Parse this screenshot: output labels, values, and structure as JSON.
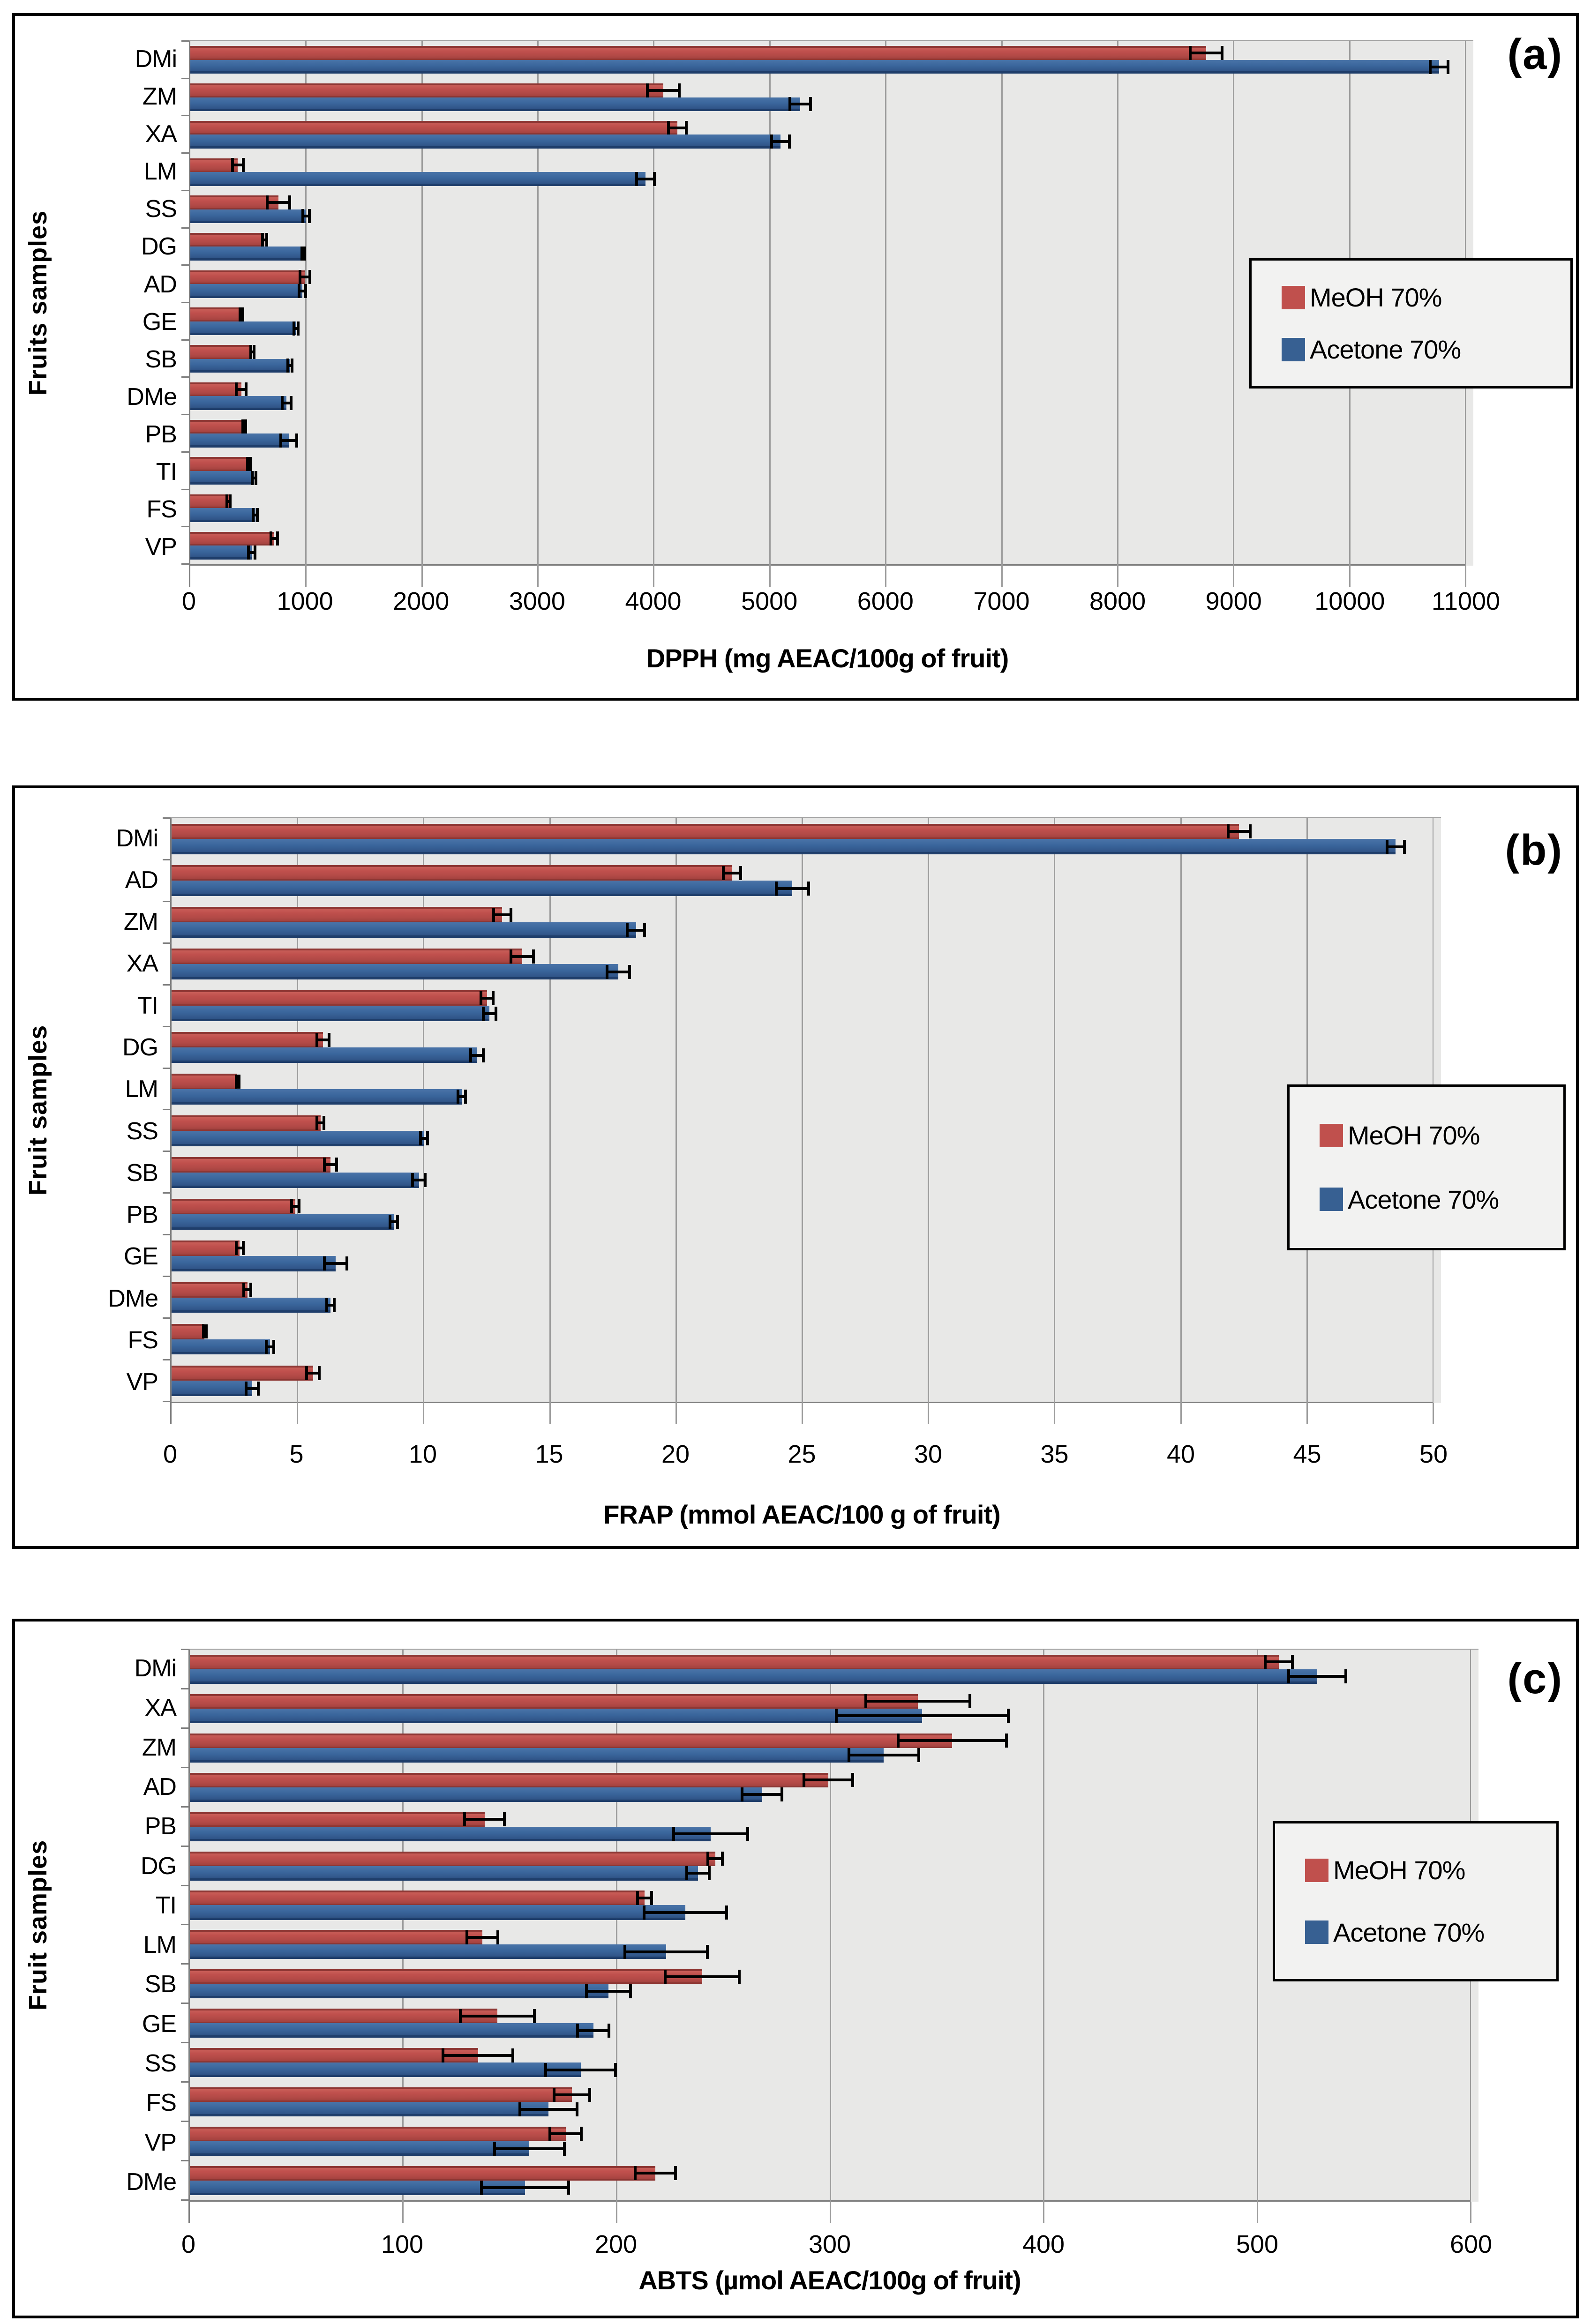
{
  "figure": {
    "panels": [
      "(a)",
      "(b)",
      "(c)"
    ]
  },
  "colors": {
    "meoh_red": "#C0504D",
    "acetone_blue": "#376092",
    "plot_background": "#E8E8E7",
    "gridline": "#9C9C9C",
    "axis": "#7F7F7F",
    "error_bar": "#000000",
    "panel_border": "#000000"
  },
  "chart_data": [
    {
      "type": "bar",
      "orientation": "horizontal",
      "panel_label": "(a)",
      "xlabel": "DPPH (mg AEAC/100g of fruit)",
      "ylabel": "Fruits samples",
      "xlim": [
        0,
        11000
      ],
      "xticks": [
        0,
        1000,
        2000,
        3000,
        4000,
        5000,
        6000,
        7000,
        8000,
        9000,
        10000,
        11000
      ],
      "grid": true,
      "legend_position": "right-middle",
      "categories": [
        "DMi",
        "ZM",
        "XA",
        "LM",
        "SS",
        "DG",
        "AD",
        "GE",
        "SB",
        "DMe",
        "PB",
        "TI",
        "FS",
        "VP"
      ],
      "series": [
        {
          "name": "MeOH 70%",
          "color": "#C0504D",
          "values": [
            8760,
            4080,
            4200,
            410,
            760,
            640,
            990,
            440,
            535,
            440,
            460,
            505,
            330,
            725
          ],
          "errors": [
            150,
            150,
            90,
            60,
            110,
            30,
            55,
            25,
            25,
            55,
            20,
            25,
            25,
            40
          ]
        },
        {
          "name": "Acetone 70%",
          "color": "#376092",
          "values": [
            10770,
            5260,
            5090,
            3925,
            1000,
            975,
            965,
            910,
            860,
            830,
            850,
            550,
            560,
            530
          ],
          "errors": [
            90,
            100,
            90,
            90,
            40,
            25,
            40,
            30,
            30,
            50,
            80,
            30,
            30,
            40
          ]
        }
      ]
    },
    {
      "type": "bar",
      "orientation": "horizontal",
      "panel_label": "(b)",
      "xlabel": "FRAP (mmol AEAC/100 g of fruit)",
      "ylabel": "Fruit samples",
      "xlim": [
        0,
        50
      ],
      "xticks": [
        0,
        5,
        10,
        15,
        20,
        25,
        30,
        35,
        40,
        45,
        50
      ],
      "grid": true,
      "legend_position": "right-middle",
      "categories": [
        "DMi",
        "AD",
        "ZM",
        "XA",
        "TI",
        "DG",
        "LM",
        "SS",
        "SB",
        "PB",
        "GE",
        "DMe",
        "FS",
        "VP"
      ],
      "series": [
        {
          "name": "MeOH 70%",
          "color": "#C0504D",
          "values": [
            42.3,
            22.2,
            13.1,
            13.9,
            12.5,
            6.0,
            2.6,
            5.9,
            6.3,
            4.9,
            2.7,
            3.0,
            1.3,
            5.6
          ],
          "errors": [
            0.5,
            0.4,
            0.4,
            0.5,
            0.3,
            0.3,
            0.1,
            0.2,
            0.3,
            0.2,
            0.2,
            0.2,
            0.1,
            0.3
          ]
        },
        {
          "name": "Acetone 70%",
          "color": "#376092",
          "values": [
            48.5,
            24.6,
            18.4,
            17.7,
            12.6,
            12.1,
            11.5,
            10.0,
            9.8,
            8.8,
            6.5,
            6.3,
            3.9,
            3.2
          ],
          "errors": [
            0.4,
            0.7,
            0.4,
            0.5,
            0.3,
            0.3,
            0.2,
            0.2,
            0.3,
            0.2,
            0.5,
            0.2,
            0.2,
            0.3
          ]
        }
      ]
    },
    {
      "type": "bar",
      "orientation": "horizontal",
      "panel_label": "(c)",
      "xlabel": "ABTS (µmol AEAC/100g of fruit)",
      "ylabel": "Fruit samples",
      "xlim": [
        0,
        600
      ],
      "xticks": [
        0,
        100,
        200,
        300,
        400,
        500,
        600
      ],
      "grid": true,
      "legend_position": "right-middle",
      "categories": [
        "DMi",
        "XA",
        "ZM",
        "AD",
        "PB",
        "DG",
        "TI",
        "LM",
        "SB",
        "GE",
        "SS",
        "FS",
        "VP",
        "DMe"
      ],
      "series": [
        {
          "name": "MeOH 70%",
          "color": "#C0504D",
          "values": [
            510,
            341,
            357,
            299,
            138,
            246,
            213,
            137,
            240,
            144,
            135,
            179,
            176,
            218
          ],
          "errors": [
            7,
            25,
            26,
            12,
            10,
            4,
            4,
            8,
            18,
            18,
            17,
            9,
            8,
            10
          ]
        },
        {
          "name": "Acetone 70%",
          "color": "#376092",
          "values": [
            528,
            343,
            325,
            268,
            244,
            238,
            232,
            223,
            196,
            189,
            183,
            168,
            159,
            157
          ],
          "errors": [
            14,
            41,
            17,
            10,
            18,
            6,
            20,
            20,
            11,
            8,
            17,
            14,
            17,
            21
          ]
        }
      ]
    }
  ]
}
